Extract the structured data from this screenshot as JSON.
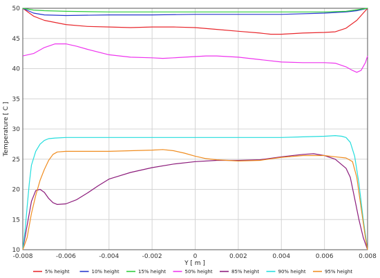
{
  "chart_data": {
    "type": "line",
    "xlabel": "Y [ m ]",
    "ylabel": "Temperature [ C ]",
    "xlim": [
      -0.008,
      0.008
    ],
    "ylim": [
      10,
      50
    ],
    "xticks": [
      "-0.008",
      "-0.006",
      "-0.004",
      "-0.002",
      "0",
      "0.002",
      "0.004",
      "0.006",
      "0.008"
    ],
    "yticks": [
      "10",
      "15",
      "20",
      "25",
      "30",
      "35",
      "40",
      "45",
      "50"
    ],
    "grid": true,
    "legend_position": "bottom",
    "series": [
      {
        "name": "5% height",
        "color": "#e8262b",
        "points": [
          [
            -0.008,
            50
          ],
          [
            -0.0075,
            48.7
          ],
          [
            -0.007,
            48
          ],
          [
            -0.006,
            47.3
          ],
          [
            -0.005,
            47
          ],
          [
            -0.004,
            46.9
          ],
          [
            -0.003,
            46.8
          ],
          [
            -0.002,
            46.9
          ],
          [
            -0.001,
            46.9
          ],
          [
            0,
            46.8
          ],
          [
            0.001,
            46.5
          ],
          [
            0.002,
            46.2
          ],
          [
            0.003,
            45.9
          ],
          [
            0.0035,
            45.7
          ],
          [
            0.004,
            45.7
          ],
          [
            0.005,
            45.9
          ],
          [
            0.006,
            46
          ],
          [
            0.0065,
            46.1
          ],
          [
            0.007,
            46.7
          ],
          [
            0.0075,
            48
          ],
          [
            0.008,
            50
          ]
        ]
      },
      {
        "name": "10% height",
        "color": "#2233cc",
        "points": [
          [
            -0.008,
            50
          ],
          [
            -0.0075,
            49.2
          ],
          [
            -0.007,
            48.9
          ],
          [
            -0.006,
            48.8
          ],
          [
            -0.004,
            48.9
          ],
          [
            -0.002,
            48.9
          ],
          [
            0,
            49
          ],
          [
            0.002,
            49
          ],
          [
            0.004,
            49
          ],
          [
            0.006,
            49.2
          ],
          [
            0.007,
            49.4
          ],
          [
            0.0075,
            49.6
          ],
          [
            0.008,
            50
          ]
        ]
      },
      {
        "name": "15% height",
        "color": "#2bcc3a",
        "points": [
          [
            -0.008,
            50
          ],
          [
            -0.0075,
            49.7
          ],
          [
            -0.007,
            49.6
          ],
          [
            -0.006,
            49.5
          ],
          [
            -0.004,
            49.4
          ],
          [
            -0.002,
            49.4
          ],
          [
            0,
            49.4
          ],
          [
            0.002,
            49.4
          ],
          [
            0.004,
            49.4
          ],
          [
            0.006,
            49.4
          ],
          [
            0.007,
            49.5
          ],
          [
            0.008,
            50
          ]
        ]
      },
      {
        "name": "50% height",
        "color": "#ee33ee",
        "points": [
          [
            -0.008,
            42.1
          ],
          [
            -0.0075,
            42.5
          ],
          [
            -0.007,
            43.5
          ],
          [
            -0.0065,
            44.1
          ],
          [
            -0.006,
            44.1
          ],
          [
            -0.0055,
            43.7
          ],
          [
            -0.005,
            43.2
          ],
          [
            -0.004,
            42.3
          ],
          [
            -0.003,
            41.9
          ],
          [
            -0.002,
            41.8
          ],
          [
            -0.0015,
            41.7
          ],
          [
            -0.001,
            41.8
          ],
          [
            0,
            42
          ],
          [
            0.0005,
            42.1
          ],
          [
            0.001,
            42.1
          ],
          [
            0.002,
            41.9
          ],
          [
            0.003,
            41.5
          ],
          [
            0.004,
            41.1
          ],
          [
            0.005,
            41
          ],
          [
            0.006,
            41
          ],
          [
            0.0065,
            40.9
          ],
          [
            0.007,
            40.3
          ],
          [
            0.0073,
            39.7
          ],
          [
            0.0075,
            39.4
          ],
          [
            0.0077,
            39.7
          ],
          [
            0.0079,
            41
          ],
          [
            0.008,
            42.1
          ]
        ]
      },
      {
        "name": "85% height",
        "color": "#8b1a7a",
        "points": [
          [
            -0.008,
            10
          ],
          [
            -0.0078,
            14
          ],
          [
            -0.0076,
            18
          ],
          [
            -0.0074,
            19.8
          ],
          [
            -0.0072,
            20
          ],
          [
            -0.007,
            19.5
          ],
          [
            -0.0068,
            18.5
          ],
          [
            -0.0066,
            17.8
          ],
          [
            -0.0064,
            17.5
          ],
          [
            -0.006,
            17.6
          ],
          [
            -0.0055,
            18.3
          ],
          [
            -0.005,
            19.4
          ],
          [
            -0.0045,
            20.6
          ],
          [
            -0.004,
            21.7
          ],
          [
            -0.003,
            22.8
          ],
          [
            -0.002,
            23.6
          ],
          [
            -0.001,
            24.2
          ],
          [
            0,
            24.6
          ],
          [
            0.001,
            24.8
          ],
          [
            0.002,
            24.8
          ],
          [
            0.003,
            24.9
          ],
          [
            0.004,
            25.4
          ],
          [
            0.005,
            25.8
          ],
          [
            0.0055,
            25.9
          ],
          [
            0.006,
            25.6
          ],
          [
            0.0065,
            25
          ],
          [
            0.007,
            23.5
          ],
          [
            0.0072,
            22
          ],
          [
            0.0074,
            18.5
          ],
          [
            0.0076,
            15
          ],
          [
            0.0078,
            12
          ],
          [
            0.008,
            10
          ]
        ]
      },
      {
        "name": "90% height",
        "color": "#22dddd",
        "points": [
          [
            -0.008,
            10
          ],
          [
            -0.0079,
            13
          ],
          [
            -0.0078,
            17
          ],
          [
            -0.0077,
            21
          ],
          [
            -0.0076,
            24
          ],
          [
            -0.0074,
            26.3
          ],
          [
            -0.0072,
            27.5
          ],
          [
            -0.007,
            28.1
          ],
          [
            -0.0068,
            28.4
          ],
          [
            -0.0065,
            28.5
          ],
          [
            -0.006,
            28.6
          ],
          [
            -0.004,
            28.6
          ],
          [
            -0.002,
            28.6
          ],
          [
            0,
            28.6
          ],
          [
            0.002,
            28.6
          ],
          [
            0.004,
            28.6
          ],
          [
            0.005,
            28.7
          ],
          [
            0.006,
            28.8
          ],
          [
            0.0065,
            28.9
          ],
          [
            0.0068,
            28.8
          ],
          [
            0.007,
            28.6
          ],
          [
            0.0072,
            27.8
          ],
          [
            0.0074,
            25.5
          ],
          [
            0.0076,
            21
          ],
          [
            0.0078,
            15
          ],
          [
            0.008,
            10
          ]
        ]
      },
      {
        "name": "95% height",
        "color": "#f08c1f",
        "points": [
          [
            -0.008,
            10
          ],
          [
            -0.0078,
            12
          ],
          [
            -0.0076,
            16
          ],
          [
            -0.0074,
            19
          ],
          [
            -0.0072,
            21.5
          ],
          [
            -0.007,
            23.3
          ],
          [
            -0.0068,
            24.8
          ],
          [
            -0.0066,
            25.8
          ],
          [
            -0.0064,
            26.2
          ],
          [
            -0.006,
            26.3
          ],
          [
            -0.005,
            26.3
          ],
          [
            -0.004,
            26.3
          ],
          [
            -0.003,
            26.4
          ],
          [
            -0.002,
            26.5
          ],
          [
            -0.0015,
            26.6
          ],
          [
            -0.001,
            26.4
          ],
          [
            -0.0005,
            26
          ],
          [
            0,
            25.5
          ],
          [
            0.0005,
            25.1
          ],
          [
            0.001,
            24.9
          ],
          [
            0.002,
            24.7
          ],
          [
            0.003,
            24.8
          ],
          [
            0.004,
            25.3
          ],
          [
            0.005,
            25.6
          ],
          [
            0.006,
            25.6
          ],
          [
            0.0065,
            25.4
          ],
          [
            0.007,
            25.2
          ],
          [
            0.0073,
            24.6
          ],
          [
            0.0075,
            22
          ],
          [
            0.0077,
            17
          ],
          [
            0.0079,
            12
          ],
          [
            0.008,
            10
          ]
        ]
      }
    ]
  }
}
